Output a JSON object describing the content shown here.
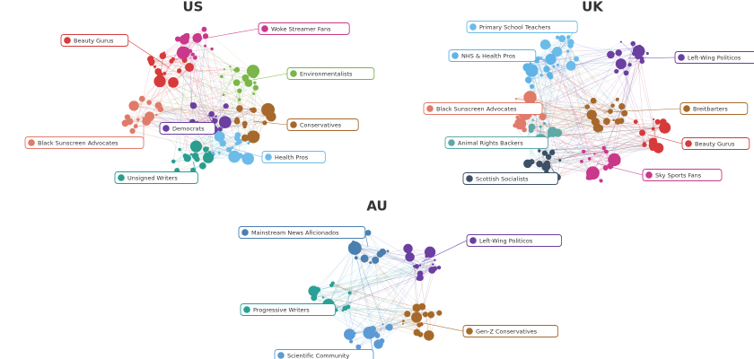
{
  "panels": [
    {
      "title": "US",
      "clusters": [
        {
          "label": "Beauty Gurus",
          "color": "#d63a3a"
        },
        {
          "label": "Woke Streamer Fans",
          "color": "#c9388a"
        },
        {
          "label": "Environmentalists",
          "color": "#7ab648"
        },
        {
          "label": "Conservatives",
          "color": "#a6692b"
        },
        {
          "label": "Democrats",
          "color": "#6b3fa0"
        },
        {
          "label": "Black Sunscreen Advocates",
          "color": "#e07b6a"
        },
        {
          "label": "Health Pros",
          "color": "#6cbbe8"
        },
        {
          "label": "Unsigned Writers",
          "color": "#2a9d8f"
        }
      ]
    },
    {
      "title": "UK",
      "clusters": [
        {
          "label": "Primary School Teachers",
          "color": "#6cbbe8"
        },
        {
          "label": "NHS & Health Pros",
          "color": "#5fb3e6"
        },
        {
          "label": "Left-Wing Politicos",
          "color": "#6b3fa0"
        },
        {
          "label": "Black Sunscreen Advocates",
          "color": "#e07b6a"
        },
        {
          "label": "Breitbarters",
          "color": "#a6692b"
        },
        {
          "label": "Animal Rights Backers",
          "color": "#5fa8a8"
        },
        {
          "label": "Beauty Gurus",
          "color": "#d63a3a"
        },
        {
          "label": "Scottish Socialists",
          "color": "#3c5066"
        },
        {
          "label": "Sky Sports Fans",
          "color": "#c9388a"
        }
      ]
    },
    {
      "title": "AU",
      "clusters": [
        {
          "label": "Mainstream News Aficionados",
          "color": "#4a7fb0"
        },
        {
          "label": "Left-Wing Politicos",
          "color": "#6b3fa0"
        },
        {
          "label": "Progressive Writers",
          "color": "#2aa198"
        },
        {
          "label": "Gen-Z Conservatives",
          "color": "#a6692b"
        },
        {
          "label": "Scientific Community",
          "color": "#5b9bd5"
        }
      ]
    }
  ]
}
